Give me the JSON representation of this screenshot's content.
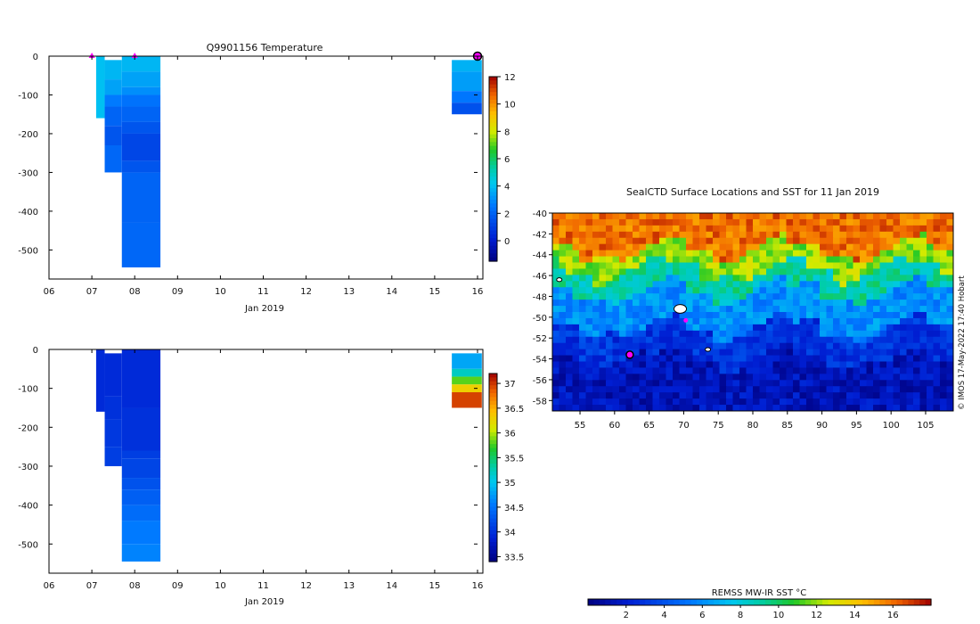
{
  "chart_data": [
    {
      "type": "heatmap",
      "title": "Q9901156  Temperature",
      "xlabel": "Jan 2019",
      "x_ticks": [
        "06",
        "07",
        "08",
        "09",
        "10",
        "11",
        "12",
        "13",
        "14",
        "15",
        "16"
      ],
      "xlim": [
        6,
        16
      ],
      "ylim": [
        -575,
        0
      ],
      "y_ticks": [
        0,
        -100,
        -200,
        -300,
        -400,
        -500
      ],
      "colorbar": {
        "min": -1.5,
        "max": 12,
        "ticks": [
          12,
          10,
          8,
          6,
          4,
          2,
          0
        ]
      },
      "markers": [
        {
          "x": 7.0,
          "depth": 0,
          "kind": "magenta-triangle"
        },
        {
          "x": 8.0,
          "depth": 0,
          "kind": "magenta-triangle"
        },
        {
          "x": 16.0,
          "depth": 0,
          "kind": "magenta-circle"
        }
      ],
      "profiles": [
        {
          "x0": 7.1,
          "x1": 7.3,
          "cells": [
            [
              0,
              -160,
              4.0
            ]
          ]
        },
        {
          "x0": 7.3,
          "x1": 7.7,
          "cells": [
            [
              -10,
              -60,
              3.8
            ],
            [
              -60,
              -100,
              3.4
            ],
            [
              -100,
              -130,
              2.6
            ],
            [
              -130,
              -180,
              2.0
            ],
            [
              -180,
              -230,
              1.6
            ],
            [
              -230,
              -300,
              2.1
            ]
          ]
        },
        {
          "x0": 7.7,
          "x1": 8.6,
          "cells": [
            [
              0,
              -40,
              3.8
            ],
            [
              -40,
              -80,
              3.4
            ],
            [
              -80,
              -100,
              3.0
            ],
            [
              -100,
              -130,
              2.4
            ],
            [
              -130,
              -170,
              2.0
            ],
            [
              -170,
              -200,
              1.6
            ],
            [
              -200,
              -270,
              1.2
            ],
            [
              -270,
              -300,
              1.6
            ],
            [
              -300,
              -430,
              2.0
            ],
            [
              -430,
              -545,
              2.1
            ]
          ]
        },
        {
          "x0": 15.4,
          "x1": 16.1,
          "cells": [
            [
              -10,
              -40,
              3.7
            ],
            [
              -40,
              -90,
              3.3
            ],
            [
              -90,
              -120,
              2.5
            ],
            [
              -120,
              -150,
              1.5
            ]
          ]
        }
      ]
    },
    {
      "type": "heatmap",
      "title": "",
      "xlabel": "Jan 2019",
      "x_ticks": [
        "06",
        "07",
        "08",
        "09",
        "10",
        "11",
        "12",
        "13",
        "14",
        "15",
        "16"
      ],
      "xlim": [
        6,
        16
      ],
      "ylim": [
        -575,
        0
      ],
      "y_ticks": [
        0,
        -100,
        -200,
        -300,
        -400,
        -500
      ],
      "colorbar": {
        "min": 33.4,
        "max": 37.2,
        "ticks": [
          37,
          36.5,
          36,
          35.5,
          35,
          34.5,
          34,
          33.5
        ]
      },
      "profiles": [
        {
          "x0": 7.1,
          "x1": 7.3,
          "cells": [
            [
              0,
              -160,
              33.95
            ]
          ]
        },
        {
          "x0": 7.3,
          "x1": 7.7,
          "cells": [
            [
              -10,
              -120,
              33.95
            ],
            [
              -120,
              -180,
              34.0
            ],
            [
              -180,
              -250,
              34.05
            ],
            [
              -250,
              -300,
              34.1
            ]
          ]
        },
        {
          "x0": 7.7,
          "x1": 8.6,
          "cells": [
            [
              0,
              -150,
              33.95
            ],
            [
              -150,
              -260,
              34.0
            ],
            [
              -260,
              -280,
              34.1
            ],
            [
              -280,
              -330,
              34.15
            ],
            [
              -330,
              -360,
              34.25
            ],
            [
              -360,
              -400,
              34.35
            ],
            [
              -400,
              -440,
              34.45
            ],
            [
              -440,
              -500,
              34.55
            ],
            [
              -500,
              -545,
              34.6
            ]
          ]
        },
        {
          "x0": 15.4,
          "x1": 16.1,
          "cells": [
            [
              -10,
              -50,
              34.8
            ],
            [
              -50,
              -70,
              35.2
            ],
            [
              -70,
              -90,
              35.8
            ],
            [
              -90,
              -110,
              36.3
            ],
            [
              -110,
              -150,
              36.95
            ]
          ]
        }
      ]
    },
    {
      "type": "heatmap",
      "title": "SealCTD Surface Locations and SST for 11 Jan 2019",
      "xlim": [
        51,
        109
      ],
      "ylim": [
        -59,
        -40
      ],
      "x_ticks": [
        55,
        60,
        65,
        70,
        75,
        80,
        85,
        90,
        95,
        100,
        105
      ],
      "y_ticks": [
        -40,
        -42,
        -44,
        -46,
        -48,
        -50,
        -52,
        -54,
        -56,
        -58
      ],
      "colorbar": {
        "label": "REMSS MW-IR SST °C",
        "min": 0,
        "max": 18,
        "ticks": [
          2,
          4,
          6,
          8,
          10,
          12,
          14,
          16
        ]
      },
      "sst_bands": [
        {
          "lat_from": -40,
          "lat_to": -43.5,
          "sst": 16
        },
        {
          "lat_from": -43.5,
          "lat_to": -45.5,
          "sst": 12
        },
        {
          "lat_from": -45.5,
          "lat_to": -47.5,
          "sst": 9
        },
        {
          "lat_from": -47.5,
          "lat_to": -51,
          "sst": 6
        },
        {
          "lat_from": -51,
          "lat_to": -54,
          "sst": 3
        },
        {
          "lat_from": -54,
          "lat_to": -59,
          "sst": 1.5
        }
      ],
      "tracks": [
        {
          "lon": 69.5,
          "lat": -49.2,
          "kind": "island"
        },
        {
          "lon": 52.0,
          "lat": -46.4,
          "kind": "island"
        },
        {
          "lon": 73.5,
          "lat": -53.1,
          "kind": "island"
        }
      ],
      "markers": [
        {
          "lon": 62.2,
          "lat": -53.6,
          "kind": "magenta-circle"
        },
        {
          "lon": 70.3,
          "lat": -50.3,
          "kind": "magenta-dot"
        }
      ],
      "credit": "© IMOS 17-May-2022 17:40 Hobart"
    }
  ]
}
